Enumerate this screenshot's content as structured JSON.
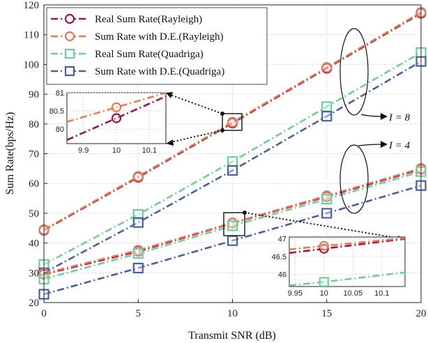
{
  "chart_data": {
    "type": "line",
    "xlabel": "Transmit SNR (dB)",
    "ylabel": "Sum Rate(bps/Hz)",
    "xlim": [
      0,
      20
    ],
    "ylim": [
      20,
      120
    ],
    "xticks": [
      "0",
      "5",
      "10",
      "15",
      "20"
    ],
    "yticks": [
      "20",
      "30",
      "40",
      "50",
      "60",
      "70",
      "80",
      "90",
      "100",
      "110",
      "120"
    ],
    "grid": true,
    "legend_position": "top-left",
    "x": [
      0,
      5,
      10,
      15,
      20
    ],
    "series": [
      {
        "name": "Real Sum Rate(Rayleigh)",
        "color": "#a3124a",
        "marker": "circle",
        "group": "I = 8",
        "values": [
          44.3,
          62.1,
          80.3,
          98.7,
          117.2
        ]
      },
      {
        "name": "Sum Rate with D.E.(Rayleigh)",
        "color": "#f07850",
        "marker": "circle",
        "group": "I = 8",
        "values": [
          44.5,
          62.4,
          80.6,
          99.0,
          117.5
        ]
      },
      {
        "name": "Real Sum Rate(Quadriga)",
        "color": "#6dcf9a",
        "marker": "square",
        "group": "I = 8",
        "values": [
          32.8,
          49.6,
          67.4,
          85.8,
          104.0
        ]
      },
      {
        "name": "Sum Rate with D.E.(Quadriga)",
        "color": "#4560a8",
        "marker": "square",
        "group": "I = 8",
        "values": [
          30.0,
          46.9,
          64.4,
          82.6,
          101.0
        ]
      },
      {
        "name": "Real Sum Rate(Rayleigh)",
        "color": "#a3124a",
        "marker": "circle",
        "group": "I = 4",
        "values": [
          29.5,
          37.2,
          46.7,
          55.6,
          64.8
        ]
      },
      {
        "name": "Sum Rate with D.E.(Rayleigh)",
        "color": "#f07850",
        "marker": "circle",
        "group": "I = 4",
        "values": [
          29.8,
          37.6,
          46.8,
          55.9,
          65.1
        ]
      },
      {
        "name": "Real Sum Rate(Quadriga)",
        "color": "#6dcf9a",
        "marker": "square",
        "group": "I = 4",
        "values": [
          27.9,
          36.5,
          45.8,
          54.8,
          64.0
        ]
      },
      {
        "name": "Sum Rate with D.E.(Quadriga)",
        "color": "#4560a8",
        "marker": "square",
        "group": "I = 4",
        "values": [
          22.8,
          31.6,
          40.8,
          50.0,
          59.3
        ]
      }
    ],
    "annotations": [
      {
        "text": "I = 8",
        "points_to": "upper curve group at SNR 15-20 dB"
      },
      {
        "text": "I = 4",
        "points_to": "lower curve group at SNR 15-20 dB"
      }
    ],
    "insets": [
      {
        "zoom_of": "I = 8 curves near SNR 10 dB",
        "xlim": [
          9.85,
          10.15
        ],
        "ylim": [
          79.6,
          81.0
        ],
        "xticks": [
          "9.9",
          "10",
          "10.1"
        ],
        "yticks": [
          "80",
          "80.5",
          "81"
        ],
        "ytick_values": [
          80,
          80.5,
          81
        ],
        "xtick_values": [
          9.9,
          10,
          10.1
        ],
        "series": [
          {
            "name": "Real Sum Rate(Rayleigh)",
            "color": "#a3124a",
            "marker": "circle",
            "x": [
              9.85,
              10,
              10.15
            ],
            "values": [
              79.7,
              80.3,
              80.9
            ]
          },
          {
            "name": "Sum Rate with D.E.(Rayleigh)",
            "color": "#f07850",
            "marker": "circle",
            "x": [
              9.85,
              10,
              10.15
            ],
            "values": [
              80.2,
              80.6,
              81.0
            ]
          }
        ]
      },
      {
        "zoom_of": "I = 4 curves near SNR 10 dB",
        "xlim": [
          9.94,
          10.14
        ],
        "ylim": [
          45.65,
          47.05
        ],
        "xticks": [
          "9.95",
          "10",
          "10.05",
          "10.1"
        ],
        "yticks": [
          "46",
          "46.5",
          "47"
        ],
        "ytick_values": [
          46,
          46.5,
          47
        ],
        "xtick_values": [
          9.95,
          10,
          10.05,
          10.1
        ],
        "series": [
          {
            "name": "Real Sum Rate(Rayleigh)",
            "color": "#a3124a",
            "marker": "circle",
            "x": [
              9.94,
              10,
              10.14
            ],
            "values": [
              46.6,
              46.72,
              47.0
            ]
          },
          {
            "name": "Sum Rate with D.E.(Rayleigh)",
            "color": "#f07850",
            "marker": "circle",
            "x": [
              9.94,
              10,
              10.14
            ],
            "values": [
              46.7,
              46.8,
              47.02
            ]
          },
          {
            "name": "Real Sum Rate(Quadriga)",
            "color": "#6dcf9a",
            "marker": "square",
            "x": [
              9.94,
              10,
              10.14
            ],
            "values": [
              45.68,
              45.78,
              46.05
            ]
          }
        ]
      }
    ]
  }
}
